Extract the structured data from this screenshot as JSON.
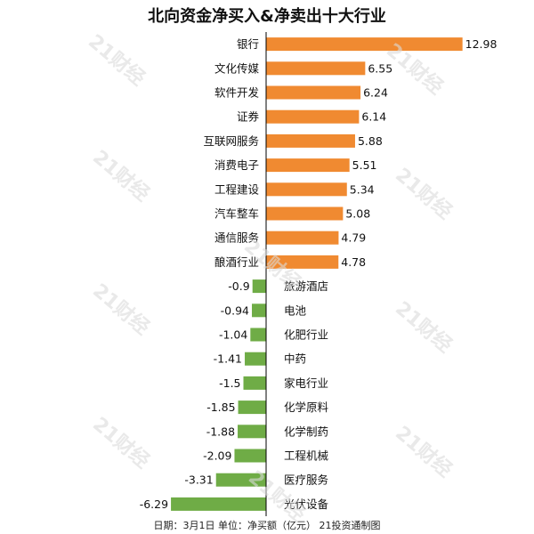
{
  "colors": {
    "positive": "#f08a31",
    "negative": "#6fac46",
    "axis": "#000000"
  },
  "watermark": "21财经",
  "footer": "日期：3月1日 单位：净买额（亿元） 21投资通制图",
  "chart_data": {
    "type": "bar",
    "orientation": "horizontal",
    "title": "北向资金净买入&净卖出十大行业",
    "categories": [
      "银行",
      "文化传媒",
      "软件开发",
      "证券",
      "互联网服务",
      "消费电子",
      "工程建设",
      "汽车整车",
      "通信服务",
      "酿酒行业",
      "旅游酒店",
      "电池",
      "化肥行业",
      "中药",
      "家电行业",
      "化学原料",
      "化学制药",
      "工程机械",
      "医疗服务",
      "光伏设备"
    ],
    "values": [
      12.98,
      6.55,
      6.24,
      6.14,
      5.88,
      5.51,
      5.34,
      5.08,
      4.79,
      4.78,
      -0.9,
      -0.94,
      -1.04,
      -1.41,
      -1.5,
      -1.85,
      -1.88,
      -2.09,
      -3.31,
      -6.29
    ],
    "value_labels": [
      "12.98",
      "6.55",
      "6.24",
      "6.14",
      "5.88",
      "5.51",
      "5.34",
      "5.08",
      "4.79",
      "4.78",
      "-0.9",
      "-0.94",
      "-1.04",
      "-1.41",
      "-1.5",
      "-1.85",
      "-1.88",
      "-2.09",
      "-3.31",
      "-6.29"
    ],
    "xlim": [
      -6.29,
      12.98
    ],
    "grid": false,
    "legend": "none"
  }
}
